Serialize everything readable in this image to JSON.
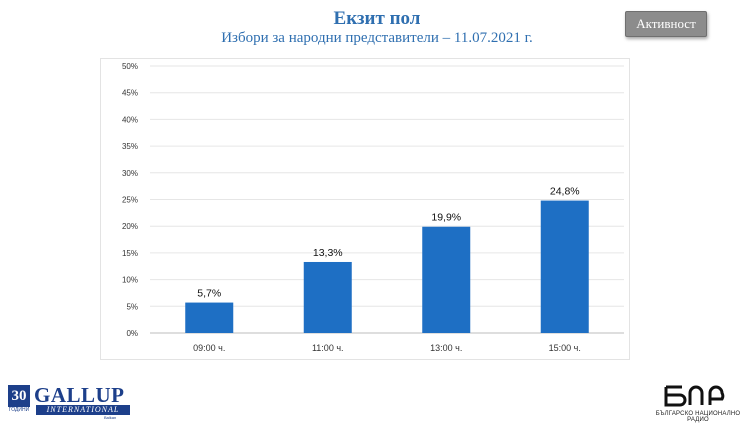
{
  "header": {
    "title": "Екзит пол",
    "subtitle": "Избори за народни представители – 11.07.2021 г.",
    "badge": "Активност"
  },
  "colors": {
    "bar": "#1e6fc4",
    "title": "#2f6fb0",
    "badge_bg": "#8c8c8c"
  },
  "chart_data": {
    "type": "bar",
    "categories": [
      "09:00 ч.",
      "11:00 ч.",
      "13:00 ч.",
      "15:00 ч."
    ],
    "values": [
      5.7,
      13.3,
      19.9,
      24.8
    ],
    "data_labels": [
      "5,7%",
      "13,3%",
      "19,9%",
      "24,8%"
    ],
    "ylim": [
      0,
      50
    ],
    "yticks": [
      0,
      5,
      10,
      15,
      20,
      25,
      30,
      35,
      40,
      45,
      50
    ],
    "ytick_labels": [
      "0%",
      "5%",
      "10%",
      "15%",
      "20%",
      "25%",
      "30%",
      "35%",
      "40%",
      "45%",
      "50%"
    ],
    "grid": true,
    "legend": false,
    "title": "",
    "xlabel": "",
    "ylabel": ""
  },
  "logos": {
    "gallup_years": "30",
    "gallup_years_caption": "ГОДИНИ",
    "gallup_name": "GALLUP",
    "gallup_international": "INTERNATIONAL",
    "gallup_sub": "Balkan",
    "bnr_mark": "БНР",
    "bnr_caption": "БЪЛГАРСКО НАЦИОНАЛНО РАДИО"
  }
}
